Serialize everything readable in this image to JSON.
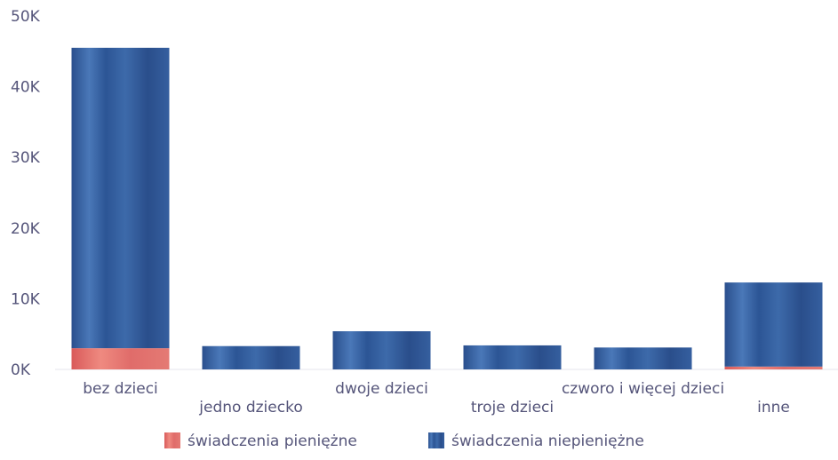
{
  "chart_data": {
    "type": "bar",
    "stacked": true,
    "categories": [
      "bez dzieci",
      "jedno dziecko",
      "dwoje dzieci",
      "troje dzieci",
      "czworo i więcej dzieci",
      "inne"
    ],
    "series": [
      {
        "name": "świadczenia pieniężne",
        "color": "#e06a6a",
        "values": [
          3000,
          0,
          0,
          0,
          0,
          400
        ]
      },
      {
        "name": "świadczenia niepieniężne",
        "color": "#2c5494",
        "values": [
          42500,
          3300,
          5400,
          3400,
          3100,
          11900
        ]
      }
    ],
    "ylim": [
      0,
      50000
    ],
    "yticks": [
      {
        "value": 0,
        "label": "0K"
      },
      {
        "value": 10000,
        "label": "10K"
      },
      {
        "value": 20000,
        "label": "20K"
      },
      {
        "value": 30000,
        "label": "30K"
      },
      {
        "value": 40000,
        "label": "40K"
      },
      {
        "value": 50000,
        "label": "50K"
      }
    ],
    "grid": false,
    "legend_position": "bottom"
  }
}
